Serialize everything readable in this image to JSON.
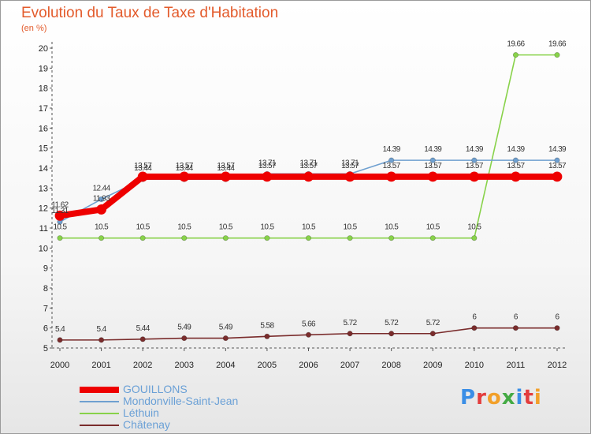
{
  "title": "Evolution du Taux de Taxe d'Habitation",
  "unit": "(en %)",
  "logo": {
    "text": "Proxiti",
    "colors": [
      "#3a8ee6",
      "#e33d3d",
      "#f2a02a",
      "#44aa44",
      "#3a8ee6",
      "#e33d3d",
      "#f2a02a"
    ]
  },
  "chart_data": {
    "type": "line",
    "title": "Evolution du Taux de Taxe d'Habitation",
    "ylabel": "(en %)",
    "xlabel": "",
    "x": [
      "2000",
      "2001",
      "2002",
      "2003",
      "2004",
      "2005",
      "2006",
      "2007",
      "2008",
      "2009",
      "2010",
      "2011",
      "2012"
    ],
    "ylim": [
      5,
      20
    ],
    "yticks": [
      "5",
      "6",
      "7",
      "8",
      "9",
      "10",
      "11",
      "12",
      "13",
      "14",
      "15",
      "16",
      "17",
      "18",
      "19",
      "20"
    ],
    "grid": false,
    "legend": "bottom-left",
    "series": [
      {
        "name": "GOUILLONS",
        "color": "#ee0000",
        "values": [
          11.62,
          11.93,
          13.57,
          13.57,
          13.57,
          13.57,
          13.57,
          13.57,
          13.57,
          13.57,
          13.57,
          13.57,
          13.57
        ],
        "labels": [
          "11.62",
          "11.93",
          "13.57",
          "13.57",
          "13.57",
          "13.57",
          "13.57",
          "13.57",
          "13.57",
          "13.57",
          "13.57",
          "13.57",
          "13.57"
        ]
      },
      {
        "name": "Mondonville-Saint-Jean",
        "color": "#6fa0d0",
        "values": [
          11.31,
          12.44,
          13.44,
          13.44,
          13.44,
          13.71,
          13.71,
          13.71,
          14.39,
          14.39,
          14.39,
          14.39,
          14.39
        ],
        "labels": [
          "11.31",
          "12.44",
          "13.44",
          "13.44",
          "13.44",
          "13.71",
          "13.71",
          "13.71",
          "14.39",
          "14.39",
          "14.39",
          "14.39",
          "14.39"
        ]
      },
      {
        "name": "Léthuin",
        "color": "#88d24a",
        "values": [
          10.5,
          10.5,
          10.5,
          10.5,
          10.5,
          10.5,
          10.5,
          10.5,
          10.5,
          10.5,
          10.5,
          19.66,
          19.66
        ],
        "labels": [
          "10.5",
          "10.5",
          "10.5",
          "10.5",
          "10.5",
          "10.5",
          "10.5",
          "10.5",
          "10.5",
          "10.5",
          "10.5",
          "19.66",
          "19.66"
        ]
      },
      {
        "name": "Châtenay",
        "color": "#7a2c2c",
        "values": [
          5.4,
          5.4,
          5.44,
          5.49,
          5.49,
          5.58,
          5.66,
          5.72,
          5.72,
          5.72,
          6,
          6,
          6
        ],
        "labels": [
          "5.4",
          "5.4",
          "5.44",
          "5.49",
          "5.49",
          "5.58",
          "5.66",
          "5.72",
          "5.72",
          "5.72",
          "6",
          "6",
          "6"
        ]
      }
    ]
  }
}
